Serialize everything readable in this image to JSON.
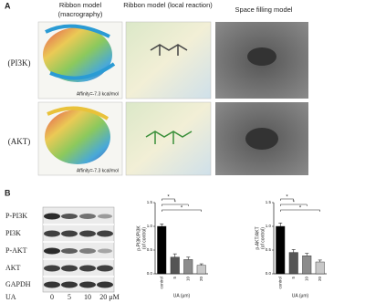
{
  "panel_a": {
    "label": "A",
    "headers": [
      [
        "Ribbon model",
        "(macrography)"
      ],
      [
        "Ribbon model (local reaction)"
      ],
      [
        "Space filling model"
      ]
    ],
    "rows": [
      "(PI3K)",
      "(AKT)"
    ],
    "affinity": [
      "Affinity=-7.3 kcal/mol",
      "Affinity=-7.3 kcal/mol"
    ]
  },
  "panel_b": {
    "label": "B",
    "blot_rows": [
      "P-PI3K",
      "PI3K",
      "P-AKT",
      "AKT",
      "GAPDH"
    ],
    "treatment": "UA",
    "doses": [
      "0",
      "5",
      "10",
      "20 μM"
    ]
  },
  "chart_data": [
    {
      "type": "bar",
      "ylabel": "p-PI3K/PI3K",
      "ylabel2": "(of control)",
      "xlabel": "UA (μm)",
      "categories": [
        "control",
        "5",
        "10",
        "20"
      ],
      "values": [
        1.0,
        0.35,
        0.3,
        0.18
      ],
      "errors": [
        0.05,
        0.07,
        0.05,
        0.03
      ],
      "colors": [
        "#000000",
        "#555555",
        "#8c8c8c",
        "#c8c8c8"
      ],
      "ylim": [
        0,
        1.5
      ],
      "yticks": [
        {
          "value": 0,
          "label": "0.0"
        },
        0.5,
        {
          "value": 1,
          "label": "1.0"
        },
        1.5
      ],
      "significance_labels": [
        "*",
        "*",
        "*"
      ]
    },
    {
      "type": "bar",
      "ylabel": "p-AKT/AKT",
      "ylabel2": "(of control)",
      "xlabel": "UA (μm)",
      "categories": [
        "control",
        "5",
        "10",
        "20"
      ],
      "values": [
        1.0,
        0.45,
        0.38,
        0.25
      ],
      "errors": [
        0.07,
        0.06,
        0.05,
        0.04
      ],
      "colors": [
        "#000000",
        "#555555",
        "#8c8c8c",
        "#c8c8c8"
      ],
      "ylim": [
        0,
        1.5
      ],
      "yticks": [
        {
          "value": 0,
          "label": "0.0"
        },
        0.5,
        {
          "value": 1,
          "label": "1.0"
        },
        1.5
      ],
      "significance_labels": [
        "*",
        "*",
        "*"
      ]
    }
  ]
}
